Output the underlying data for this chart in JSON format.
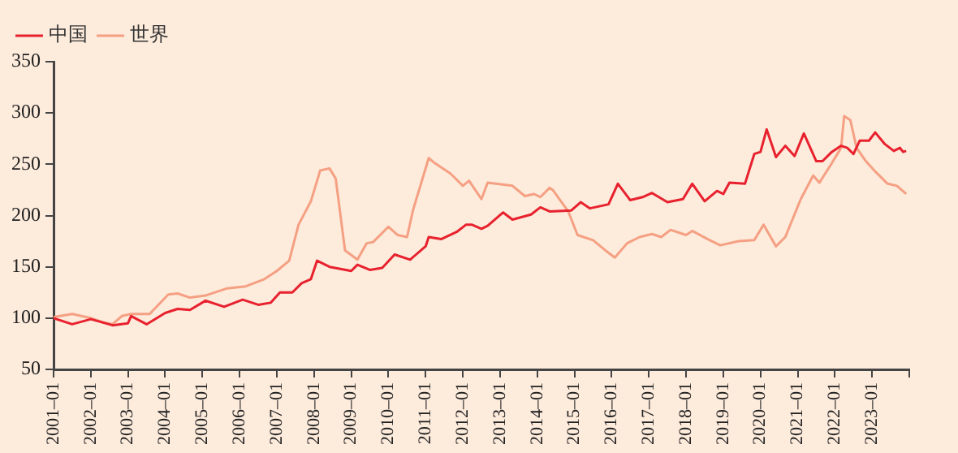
{
  "chart_data": {
    "type": "line",
    "xlim": [
      "2001-01",
      "2024-01"
    ],
    "xticks": [
      {
        "value": "2001-01",
        "label": "2001–01"
      },
      {
        "value": "2002-01",
        "label": "2002–01"
      },
      {
        "value": "2003-01",
        "label": "2003–01"
      },
      {
        "value": "2004-01",
        "label": "2004–01"
      },
      {
        "value": "2005-01",
        "label": "2005–01"
      },
      {
        "value": "2006-01",
        "label": "2006–01"
      },
      {
        "value": "2007-01",
        "label": "2007–01"
      },
      {
        "value": "2008-01",
        "label": "2008–01"
      },
      {
        "value": "2009-01",
        "label": "2009–01"
      },
      {
        "value": "2010-01",
        "label": "2010–01"
      },
      {
        "value": "2011-01",
        "label": "2011–01"
      },
      {
        "value": "2012-01",
        "label": "2012–01"
      },
      {
        "value": "2013-01",
        "label": "2013–01"
      },
      {
        "value": "2014-01",
        "label": "2014–01"
      },
      {
        "value": "2015-01",
        "label": "2015–01"
      },
      {
        "value": "2016-01",
        "label": "2016–01"
      },
      {
        "value": "2017-01",
        "label": "2017–01"
      },
      {
        "value": "2018-01",
        "label": "2018–01"
      },
      {
        "value": "2019-01",
        "label": "2019–01"
      },
      {
        "value": "2020-01",
        "label": "2020–01"
      },
      {
        "value": "2021-01",
        "label": "2021–01"
      },
      {
        "value": "2022-01",
        "label": "2022–01"
      },
      {
        "value": "2023-01",
        "label": "2023–01"
      },
      {
        "value": "2024-01",
        "label": null
      }
    ],
    "ylim": [
      50,
      350
    ],
    "yticks": [
      50,
      100,
      150,
      200,
      250,
      300,
      350
    ],
    "grid": false,
    "legend": "top left",
    "marker": "none",
    "line_style": "solid",
    "series": [
      {
        "name": "中国",
        "color": "#e8212e",
        "x": [
          "2001-01",
          "2001-07",
          "2002-01",
          "2002-08",
          "2003-01",
          "2003-02",
          "2003-07",
          "2004-01",
          "2004-05",
          "2004-09",
          "2005-02",
          "2005-08",
          "2006-02",
          "2006-07",
          "2006-11",
          "2007-02",
          "2007-06",
          "2007-09",
          "2007-12",
          "2008-02",
          "2008-06",
          "2009-01",
          "2009-03",
          "2009-07",
          "2009-11",
          "2010-03",
          "2010-08",
          "2011-01",
          "2011-02",
          "2011-06",
          "2011-11",
          "2012-02",
          "2012-04",
          "2012-07",
          "2012-09",
          "2013-02",
          "2013-05",
          "2013-11",
          "2014-02",
          "2014-05",
          "2014-12",
          "2015-03",
          "2015-06",
          "2015-12",
          "2016-03",
          "2016-07",
          "2016-11",
          "2017-02",
          "2017-07",
          "2017-12",
          "2018-03",
          "2018-07",
          "2018-11",
          "2019-01",
          "2019-03",
          "2019-08",
          "2019-11",
          "2020-01",
          "2020-03",
          "2020-06",
          "2020-09",
          "2020-12",
          "2021-03",
          "2021-07",
          "2021-09",
          "2021-12",
          "2022-03",
          "2022-05",
          "2022-07",
          "2022-09",
          "2022-12",
          "2023-02",
          "2023-05",
          "2023-08",
          "2023-10",
          "2023-11",
          "2023-12"
        ],
        "values": [
          100,
          94,
          99,
          93,
          95,
          102,
          94,
          105,
          109,
          108,
          117,
          111,
          118,
          113,
          115,
          125,
          125,
          134,
          138,
          156,
          150,
          146,
          152,
          147,
          149,
          162,
          157,
          170,
          179,
          177,
          184,
          191,
          191,
          187,
          190,
          203,
          196,
          201,
          208,
          204,
          205,
          213,
          207,
          211,
          231,
          215,
          218,
          222,
          213,
          216,
          231,
          214,
          224,
          221,
          232,
          231,
          260,
          262,
          284,
          257,
          268,
          258,
          280,
          253,
          253,
          262,
          268,
          266,
          260,
          273,
          273,
          281,
          270,
          263,
          266,
          262,
          263
        ]
      },
      {
        "name": "世界",
        "color": "#f5a083",
        "x": [
          "2001-01",
          "2001-07",
          "2002-01",
          "2002-05",
          "2002-08",
          "2002-11",
          "2003-02",
          "2003-08",
          "2004-02",
          "2004-05",
          "2004-09",
          "2005-02",
          "2005-09",
          "2006-03",
          "2006-09",
          "2007-01",
          "2007-05",
          "2007-08",
          "2007-12",
          "2008-03",
          "2008-06",
          "2008-08",
          "2008-11",
          "2009-03",
          "2009-06",
          "2009-08",
          "2010-01",
          "2010-04",
          "2010-07",
          "2010-09",
          "2011-02",
          "2011-04",
          "2011-09",
          "2012-01",
          "2012-03",
          "2012-07",
          "2012-09",
          "2013-05",
          "2013-09",
          "2013-12",
          "2014-02",
          "2014-05",
          "2014-06",
          "2014-11",
          "2015-02",
          "2015-07",
          "2015-11",
          "2016-02",
          "2016-06",
          "2016-10",
          "2017-02",
          "2017-05",
          "2017-08",
          "2018-01",
          "2018-03",
          "2018-08",
          "2018-12",
          "2019-06",
          "2019-11",
          "2020-02",
          "2020-06",
          "2020-09",
          "2021-02",
          "2021-06",
          "2021-08",
          "2021-12",
          "2022-03",
          "2022-04",
          "2022-06",
          "2022-08",
          "2022-11",
          "2023-02",
          "2023-06",
          "2023-09",
          "2023-12"
        ],
        "values": [
          101,
          104,
          100,
          96,
          94,
          102,
          104,
          104,
          123,
          124,
          120,
          122,
          129,
          131,
          138,
          146,
          156,
          191,
          214,
          244,
          246,
          236,
          166,
          157,
          173,
          174,
          189,
          181,
          179,
          206,
          256,
          251,
          241,
          229,
          234,
          216,
          232,
          229,
          219,
          221,
          218,
          227,
          225,
          204,
          181,
          176,
          166,
          159,
          173,
          179,
          182,
          179,
          186,
          181,
          185,
          177,
          171,
          175,
          176,
          191,
          170,
          179,
          216,
          239,
          232,
          251,
          266,
          297,
          293,
          266,
          253,
          243,
          231,
          229,
          221
        ]
      }
    ]
  }
}
